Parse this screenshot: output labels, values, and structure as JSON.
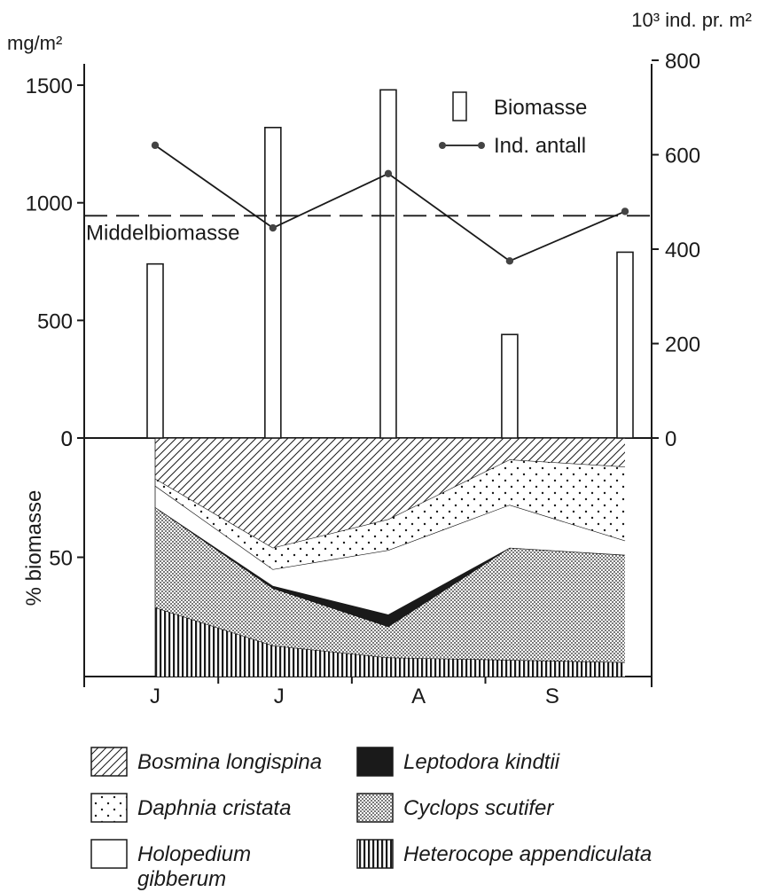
{
  "chart_data": [
    {
      "type": "bar",
      "panel": "top",
      "left_axis_unit": "mg/m²",
      "right_axis_unit": "10³ ind. pr. m²",
      "left_ylim": [
        0,
        1500
      ],
      "left_ticks": [
        "0",
        "500",
        "1000",
        "1500"
      ],
      "right_ylim": [
        0,
        800
      ],
      "right_ticks": [
        "0",
        "200",
        "400",
        "600",
        "800"
      ],
      "sample_x": [
        0.18,
        1.15,
        2.1,
        3.1,
        4.05
      ],
      "series": [
        {
          "name": "Biomasse",
          "type": "bar",
          "axis": "left",
          "values": [
            740,
            1320,
            1480,
            440,
            790
          ]
        },
        {
          "name": "Ind. antall",
          "type": "line",
          "axis": "right",
          "values": [
            620,
            445,
            560,
            375,
            480
          ]
        }
      ],
      "reference_line": {
        "label": "Middelbiomasse",
        "value": 945,
        "axis": "left"
      },
      "legend": {
        "placement": "top-right",
        "entries": [
          "Biomasse",
          "Ind. antall"
        ]
      }
    },
    {
      "type": "area",
      "panel": "bottom",
      "stacked": true,
      "ylabel": "% biomasse",
      "ylim": [
        100,
        0
      ],
      "y_ticks": [
        "0",
        "50"
      ],
      "month_ticks": [
        "J",
        "J",
        "A",
        "S"
      ],
      "month_boundaries": [
        0.7,
        1.8,
        2.9
      ],
      "sample_x": [
        0.18,
        1.15,
        2.1,
        3.1,
        4.05
      ],
      "series": [
        {
          "name": "Heterocope appendiculata",
          "pattern": "vertical",
          "values": [
            29,
            13,
            8,
            7,
            6
          ]
        },
        {
          "name": "Cyclops scutifer",
          "pattern": "dense-dots",
          "values": [
            42,
            24,
            13,
            47,
            45
          ]
        },
        {
          "name": "Leptodora kindtii",
          "pattern": "solid",
          "values": [
            0,
            1,
            5,
            0,
            0
          ]
        },
        {
          "name": "Holopedium gibberum",
          "pattern": "white",
          "values": [
            9,
            7,
            27,
            18,
            6
          ]
        },
        {
          "name": "Daphnia cristata",
          "pattern": "sparse-dots",
          "values": [
            3,
            9,
            13,
            19,
            31
          ]
        },
        {
          "name": "Bosmina longispina",
          "pattern": "diagonal",
          "values": [
            17,
            46,
            34,
            9,
            12
          ]
        }
      ]
    }
  ],
  "legend": {
    "items": [
      {
        "label": "Bosmina longispina",
        "pattern": "diagonal"
      },
      {
        "label": "Leptodora kindtii",
        "pattern": "solid"
      },
      {
        "label": "Daphnia cristata",
        "pattern": "sparse-dots"
      },
      {
        "label": "Cyclops scutifer",
        "pattern": "dense-dots"
      },
      {
        "label": "Holopedium gibberum",
        "pattern": "white"
      },
      {
        "label": "Heterocope appendiculata",
        "pattern": "vertical"
      }
    ]
  },
  "colors": {
    "ink": "#1a1a1a",
    "paper": "#ffffff"
  }
}
